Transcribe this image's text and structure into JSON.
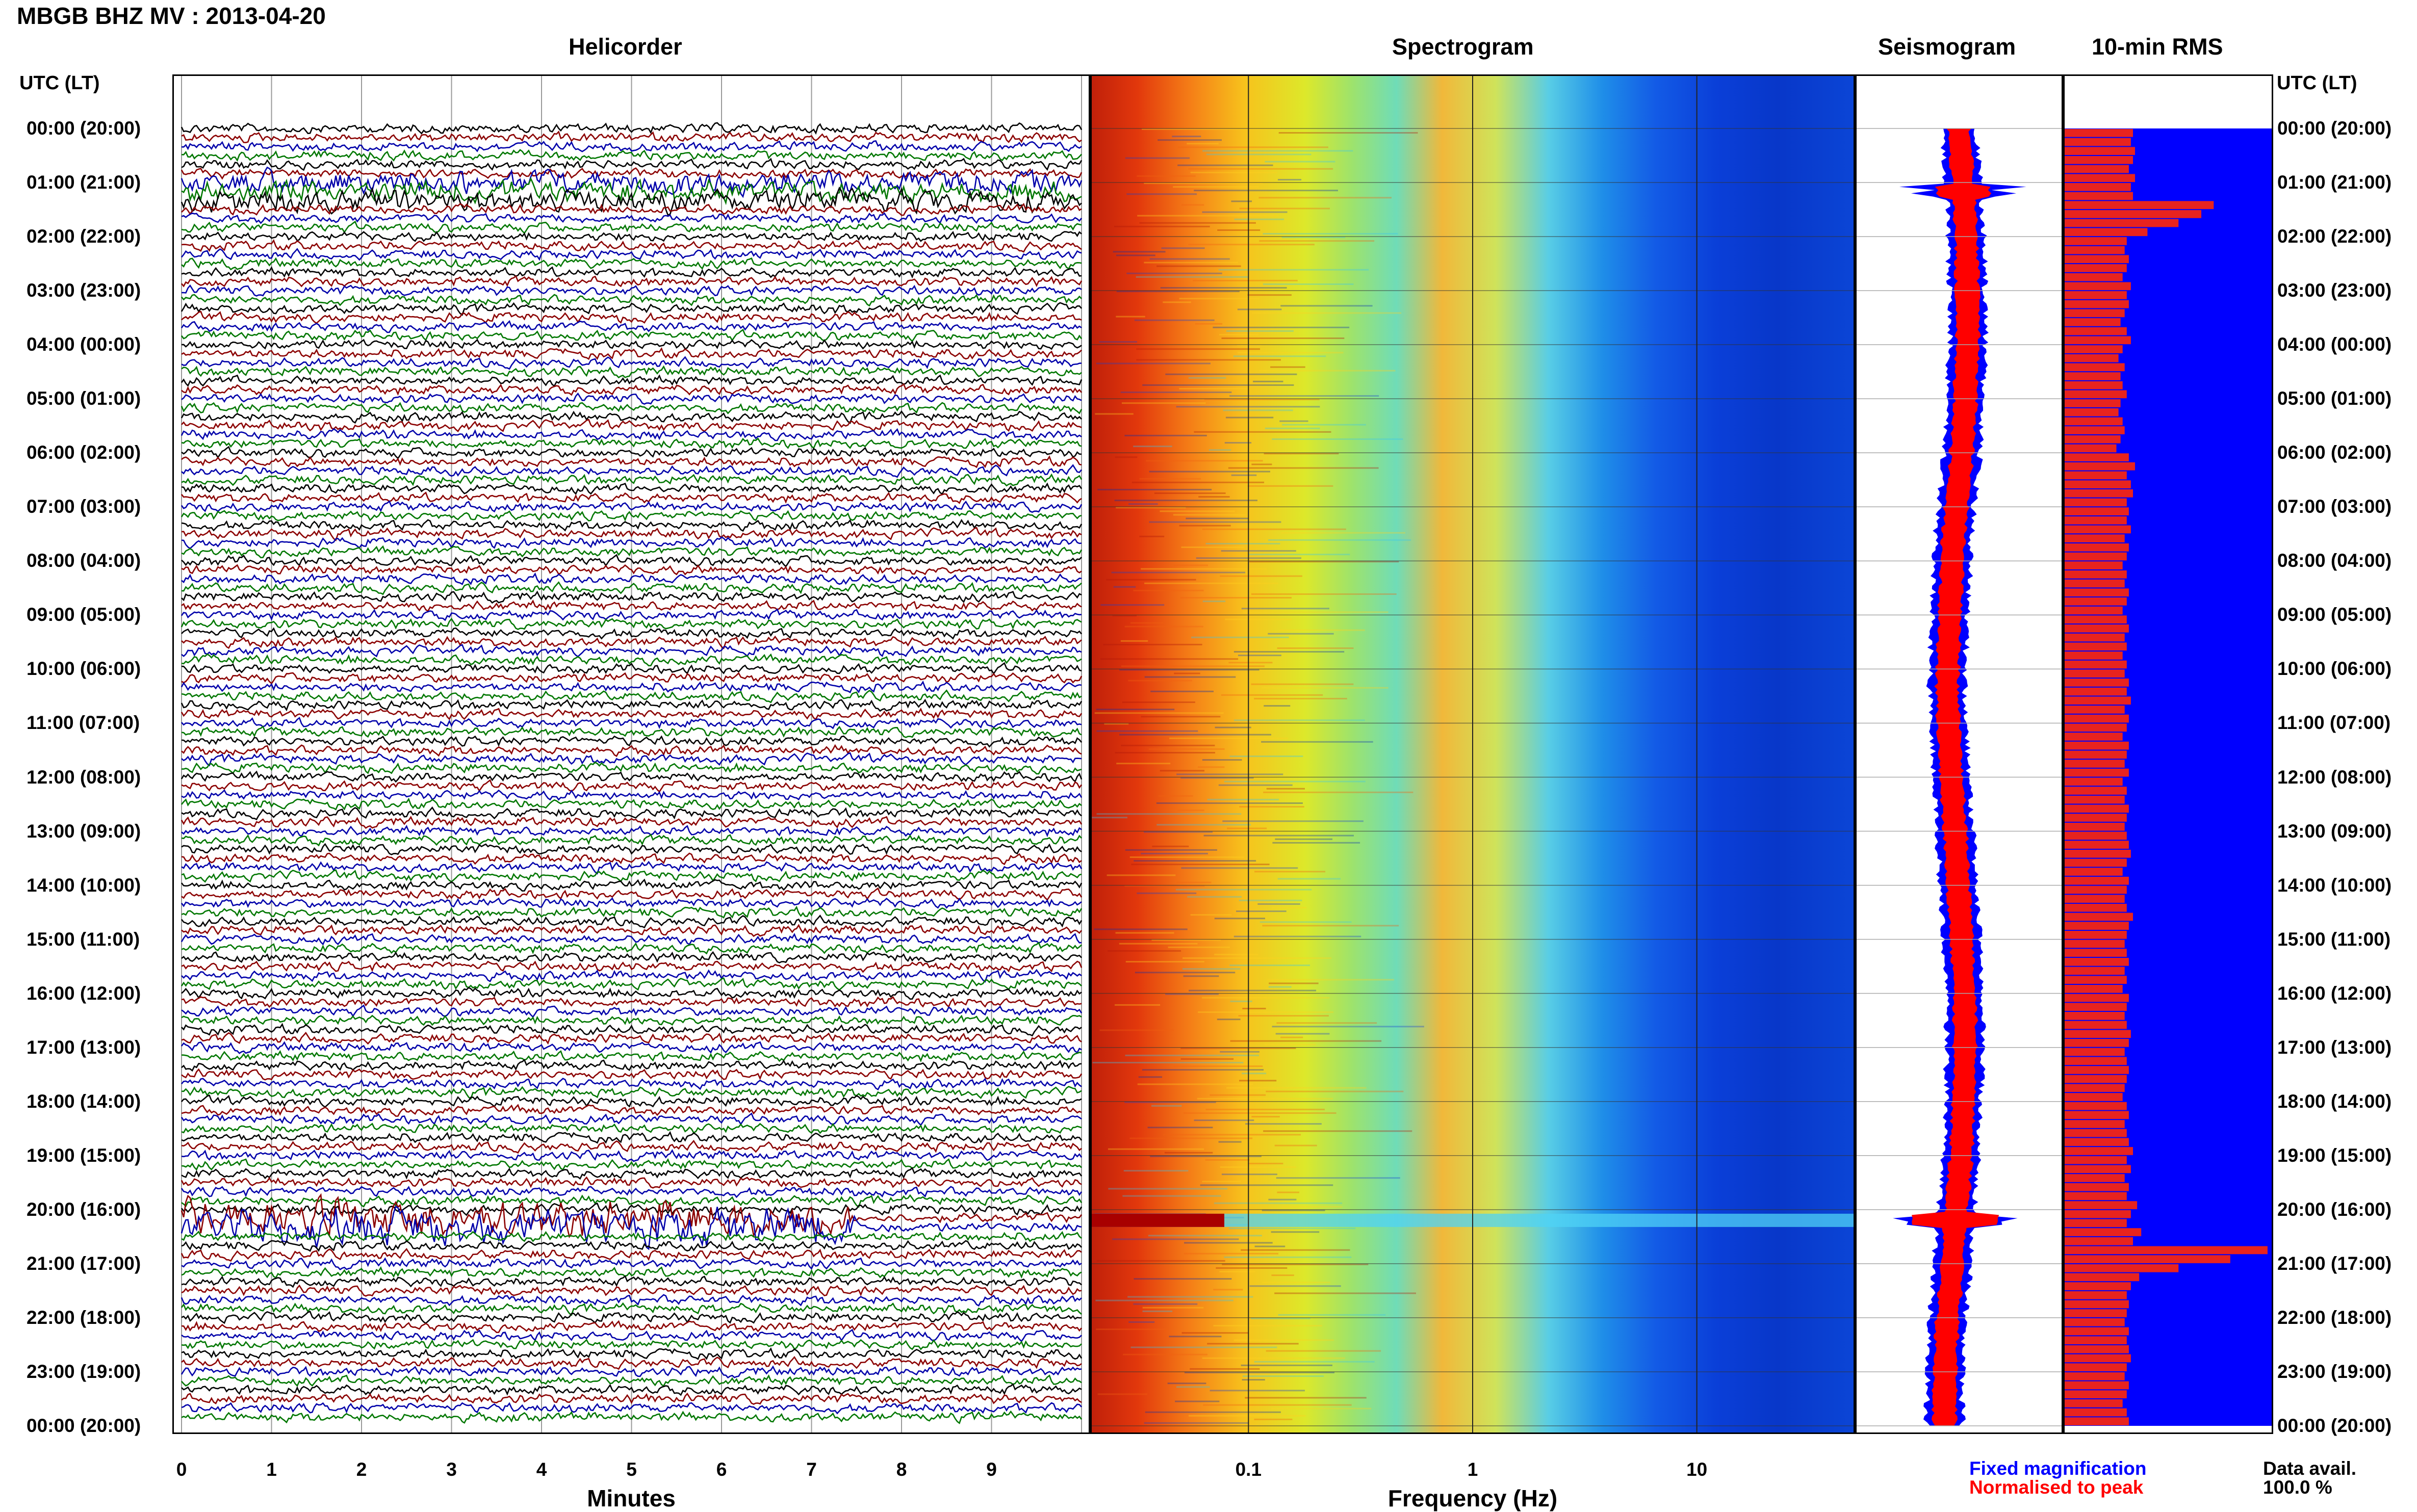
{
  "header": {
    "station": "MBGB BHZ MV : 2013-04-20",
    "tz_label_left": "UTC (LT)",
    "tz_label_right": "UTC (LT)"
  },
  "panels": {
    "helicorder": "Helicorder",
    "spectrogram": "Spectrogram",
    "seismogram": "Seismogram",
    "rms": "10-min RMS"
  },
  "time_labels": [
    "00:00 (20:00)",
    "01:00 (21:00)",
    "02:00 (22:00)",
    "03:00 (23:00)",
    "04:00 (00:00)",
    "05:00 (01:00)",
    "06:00 (02:00)",
    "07:00 (03:00)",
    "08:00 (04:00)",
    "09:00 (05:00)",
    "10:00 (06:00)",
    "11:00 (07:00)",
    "12:00 (08:00)",
    "13:00 (09:00)",
    "14:00 (10:00)",
    "15:00 (11:00)",
    "16:00 (12:00)",
    "17:00 (13:00)",
    "18:00 (14:00)",
    "19:00 (15:00)",
    "20:00 (16:00)",
    "21:00 (17:00)",
    "22:00 (18:00)",
    "23:00 (19:00)",
    "00:00 (20:00)"
  ],
  "helicorder_axis": {
    "label": "Minutes",
    "ticks": [
      "0",
      "1",
      "2",
      "3",
      "4",
      "5",
      "6",
      "7",
      "8",
      "9"
    ]
  },
  "spectrogram_axis": {
    "label": "Frequency (Hz)",
    "ticks": [
      "0.1",
      "1",
      "10"
    ],
    "scale": "log"
  },
  "legend": {
    "fixed": "Fixed magnification",
    "normalised": "Normalised to peak",
    "fixed_color": "#0000ff",
    "normalised_color": "#ff0000"
  },
  "data_availability": {
    "label": "Data avail.",
    "value": "100.0 %"
  },
  "colors": {
    "trace_cycle": [
      "#000000",
      "#8b0000",
      "#0000aa",
      "#007700"
    ],
    "rms_background": "#0000ff",
    "rms_bar": "#e8231e",
    "seismo_fixed": "#0000ff",
    "seismo_norm": "#ff0000"
  },
  "chart_data": [
    {
      "type": "line",
      "title": "Helicorder",
      "xlabel": "Minutes",
      "x_range": [
        0,
        10
      ],
      "rows_per_hour": 6,
      "hours": 24,
      "event_window_utc": "20:10 – 20:20",
      "grid": true
    },
    {
      "type": "heatmap",
      "title": "Spectrogram",
      "xlabel": "Frequency (Hz)",
      "x_scale": "log",
      "x_range": [
        0.02,
        50
      ],
      "colormap": "jet",
      "notable_bands": [
        {
          "utc": "20:10",
          "description": "broadband energy burst"
        }
      ]
    },
    {
      "type": "area",
      "title": "Seismogram",
      "series": [
        {
          "name": "Fixed magnification"
        },
        {
          "name": "Normalised to peak"
        }
      ]
    },
    {
      "type": "bar",
      "title": "10-min RMS",
      "orientation": "horizontal",
      "categories_count": 144,
      "relative_values_note": "peaks near 01:10 and 20:10 UTC",
      "values": [
        0.33,
        0.32,
        0.34,
        0.33,
        0.31,
        0.34,
        0.32,
        0.33,
        0.72,
        0.66,
        0.55,
        0.4,
        0.3,
        0.29,
        0.31,
        0.3,
        0.28,
        0.32,
        0.3,
        0.31,
        0.29,
        0.27,
        0.3,
        0.32,
        0.28,
        0.26,
        0.29,
        0.27,
        0.28,
        0.3,
        0.27,
        0.26,
        0.28,
        0.29,
        0.27,
        0.25,
        0.31,
        0.34,
        0.3,
        0.32,
        0.33,
        0.3,
        0.31,
        0.3,
        0.32,
        0.29,
        0.31,
        0.3,
        0.28,
        0.3,
        0.29,
        0.31,
        0.3,
        0.28,
        0.3,
        0.31,
        0.29,
        0.3,
        0.28,
        0.3,
        0.29,
        0.31,
        0.3,
        0.32,
        0.29,
        0.31,
        0.3,
        0.28,
        0.31,
        0.3,
        0.29,
        0.31,
        0.28,
        0.3,
        0.29,
        0.31,
        0.3,
        0.29,
        0.3,
        0.31,
        0.32,
        0.3,
        0.28,
        0.31,
        0.3,
        0.29,
        0.3,
        0.33,
        0.31,
        0.3,
        0.29,
        0.3,
        0.31,
        0.29,
        0.3,
        0.28,
        0.31,
        0.3,
        0.29,
        0.3,
        0.32,
        0.31,
        0.29,
        0.3,
        0.31,
        0.3,
        0.29,
        0.28,
        0.3,
        0.31,
        0.29,
        0.3,
        0.31,
        0.33,
        0.3,
        0.32,
        0.29,
        0.31,
        0.3,
        0.35,
        0.32,
        0.3,
        0.37,
        0.33,
        0.98,
        0.8,
        0.55,
        0.36,
        0.32,
        0.3,
        0.31,
        0.3,
        0.29,
        0.31,
        0.3,
        0.31,
        0.32,
        0.3,
        0.29,
        0.31,
        0.3,
        0.28,
        0.3,
        0.31
      ]
    }
  ]
}
